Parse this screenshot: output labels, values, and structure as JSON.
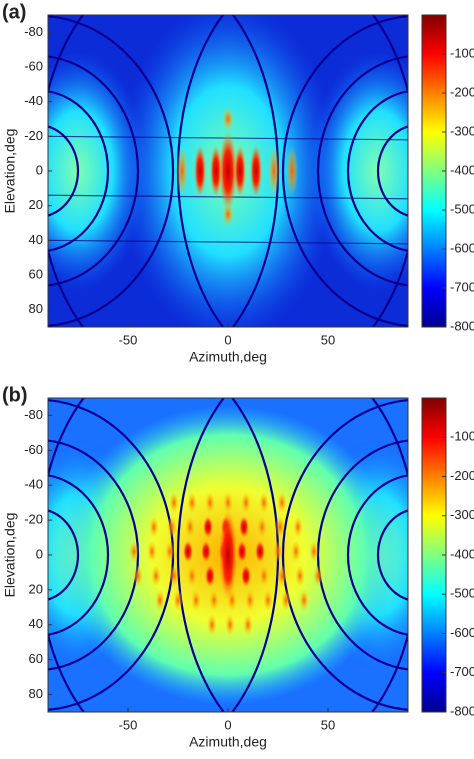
{
  "chart_data": [
    {
      "type": "heatmap",
      "label": "(a)",
      "xlabel": "Azimuth,deg",
      "ylabel": "Elevation,deg",
      "xlim": [
        -90,
        90
      ],
      "xticks": [
        -50,
        0,
        50
      ],
      "ylim": [
        -90,
        90
      ],
      "yticks": [
        -80,
        -60,
        -40,
        -20,
        0,
        20,
        40,
        60,
        80
      ],
      "y_reversed": true,
      "colormap": "jet",
      "clim": [
        -800,
        0
      ],
      "cticks": [
        -100,
        -200,
        -300,
        -400,
        -500,
        -600,
        -700,
        -800
      ]
    },
    {
      "type": "heatmap",
      "label": "(b)",
      "xlabel": "Azimuth,deg",
      "ylabel": "Elevation,deg",
      "xlim": [
        -90,
        90
      ],
      "xticks": [
        -50,
        0,
        50
      ],
      "ylim": [
        -90,
        90
      ],
      "yticks": [
        -80,
        -60,
        -40,
        -20,
        0,
        20,
        40,
        60,
        80
      ],
      "y_reversed": true,
      "colormap": "jet",
      "clim": [
        -800,
        0
      ],
      "cticks": [
        -100,
        -200,
        -300,
        -400,
        -500,
        -600,
        -700,
        -800
      ]
    }
  ]
}
